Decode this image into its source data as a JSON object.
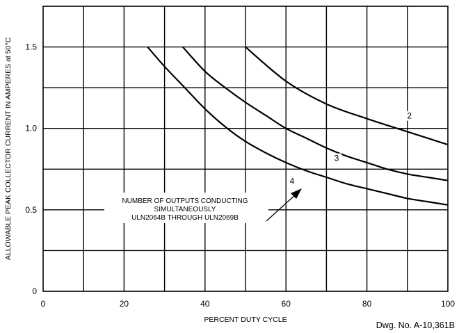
{
  "chart_data": {
    "type": "line",
    "xlabel": "PERCENT DUTY CYCLE",
    "ylabel": "ALLOWABLE PEAK COLLECTOR CURRENT IN AMPERES at 50°C",
    "xlim": [
      0,
      100
    ],
    "ylim": [
      0,
      1.75
    ],
    "x_ticks": [
      0,
      20,
      40,
      60,
      80,
      100
    ],
    "x_tick_labels": [
      "0",
      "20",
      "40",
      "60",
      "80",
      "100"
    ],
    "y_ticks": [
      0,
      0.5,
      1.0,
      1.5
    ],
    "y_tick_labels": [
      "0",
      "0.5",
      "1.0",
      "1.5"
    ],
    "grid": true,
    "x_grid_step": 10,
    "y_grid_step": 0.25,
    "series": [
      {
        "name": "2",
        "x": [
          50,
          60,
          70,
          80,
          90,
          100
        ],
        "y": [
          1.5,
          1.29,
          1.15,
          1.06,
          0.98,
          0.9
        ]
      },
      {
        "name": "3",
        "x": [
          34.5,
          40,
          45,
          50,
          55,
          60,
          65,
          70,
          75,
          80,
          85,
          90,
          95,
          100
        ],
        "y": [
          1.5,
          1.35,
          1.25,
          1.16,
          1.08,
          1.0,
          0.94,
          0.88,
          0.83,
          0.79,
          0.75,
          0.72,
          0.7,
          0.68
        ]
      },
      {
        "name": "4",
        "x": [
          25.8,
          30,
          35,
          40,
          45,
          50,
          55,
          60,
          65,
          70,
          75,
          80,
          85,
          90,
          95,
          100
        ],
        "y": [
          1.5,
          1.38,
          1.25,
          1.12,
          1.01,
          0.92,
          0.85,
          0.79,
          0.74,
          0.7,
          0.66,
          0.63,
          0.6,
          0.57,
          0.55,
          0.53
        ]
      }
    ],
    "annotation": {
      "lines": [
        "NUMBER OF OUTPUTS CONDUCTING",
        "SIMULTANEOUSLY",
        "ULN2064B THROUGH ULN2069B"
      ]
    }
  },
  "drawing_number": "Dwg. No. A-10,361B"
}
